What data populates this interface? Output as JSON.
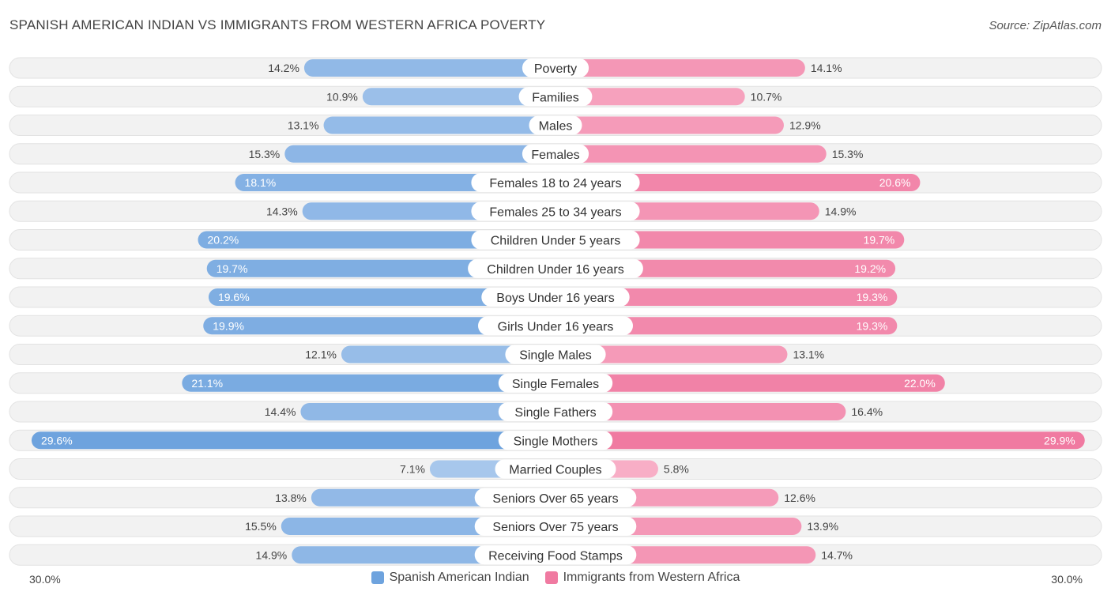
{
  "title": "SPANISH AMERICAN INDIAN VS IMMIGRANTS FROM WESTERN AFRICA POVERTY",
  "source": "Source: ZipAtlas.com",
  "colors": {
    "left_strong": "#6ea3de",
    "left_light": "#aecbee",
    "right_strong": "#f07aa1",
    "right_light": "#f8b0c8",
    "track": "#efefef"
  },
  "chart_data": {
    "type": "bar",
    "orientation": "horizontal-diverging",
    "categories": [
      "Poverty",
      "Families",
      "Males",
      "Females",
      "Females 18 to 24 years",
      "Females 25 to 34 years",
      "Children Under 5 years",
      "Children Under 16 years",
      "Boys Under 16 years",
      "Girls Under 16 years",
      "Single Males",
      "Single Females",
      "Single Fathers",
      "Single Mothers",
      "Married Couples",
      "Seniors Over 65 years",
      "Seniors Over 75 years",
      "Receiving Food Stamps"
    ],
    "series": [
      {
        "name": "Spanish American Indian",
        "values": [
          14.2,
          10.9,
          13.1,
          15.3,
          18.1,
          14.3,
          20.2,
          19.7,
          19.6,
          19.9,
          12.1,
          21.1,
          14.4,
          29.6,
          7.1,
          13.8,
          15.5,
          14.9
        ],
        "labels": [
          "14.2%",
          "10.9%",
          "13.1%",
          "15.3%",
          "18.1%",
          "14.3%",
          "20.2%",
          "19.7%",
          "19.6%",
          "19.9%",
          "12.1%",
          "21.1%",
          "14.4%",
          "29.6%",
          "7.1%",
          "13.8%",
          "15.5%",
          "14.9%"
        ]
      },
      {
        "name": "Immigrants from Western Africa",
        "values": [
          14.1,
          10.7,
          12.9,
          15.3,
          20.6,
          14.9,
          19.7,
          19.2,
          19.3,
          19.3,
          13.1,
          22.0,
          16.4,
          29.9,
          5.8,
          12.6,
          13.9,
          14.7
        ],
        "labels": [
          "14.1%",
          "10.7%",
          "12.9%",
          "15.3%",
          "20.6%",
          "14.9%",
          "19.7%",
          "19.2%",
          "19.3%",
          "19.3%",
          "13.1%",
          "22.0%",
          "16.4%",
          "29.9%",
          "5.8%",
          "12.6%",
          "13.9%",
          "14.7%"
        ]
      }
    ],
    "xlim": [
      -30,
      30
    ],
    "axis_left_label": "30.0%",
    "axis_right_label": "30.0%",
    "legend_position": "bottom-center"
  }
}
